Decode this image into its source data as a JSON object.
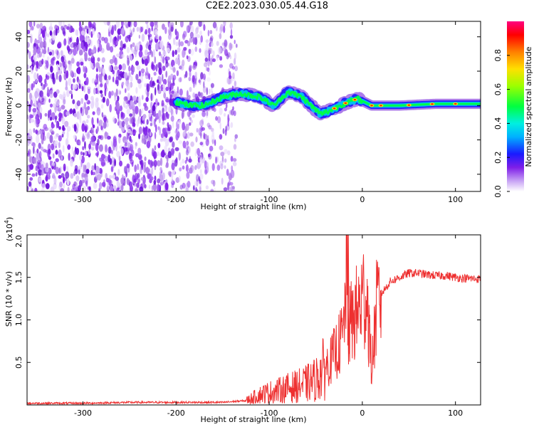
{
  "title": "C2E2.2023.030.05.44.G18",
  "colors": {
    "spectrogram_noise": "#7f1fe8",
    "snr_line": "#ee3030",
    "axis": "#000000"
  },
  "chart_data": [
    {
      "type": "heatmap",
      "name": "spectrogram",
      "xlabel": "Height of straight line (km)",
      "ylabel": "Frequency (Hz)",
      "xlim": [
        -360,
        127
      ],
      "ylim": [
        -50,
        49
      ],
      "xticks": [
        -300,
        -200,
        -100,
        0,
        100
      ],
      "yticks": [
        -40,
        -20,
        0,
        20,
        40
      ],
      "colorbar": {
        "label": "Normalized spectral amplitude",
        "range": [
          0,
          1
        ],
        "ticks": [
          "0.0",
          "0.2",
          "0.4",
          "0.6",
          "0.8"
        ],
        "tick_values": [
          0.0,
          0.2,
          0.4,
          0.6,
          0.8
        ],
        "colormap": "rainbow (white-violet-blue-cyan-green-yellow-red-magenta)"
      },
      "regions": [
        {
          "x_range": [
            -360,
            -200
          ],
          "content": "dense broadband noise, all frequencies"
        },
        {
          "x_range": [
            -200,
            -135
          ],
          "content": "broadband noise, lower density"
        },
        {
          "x_range": [
            -135,
            127
          ],
          "content": "narrowband signal near 0 Hz"
        }
      ],
      "signal_ridge": {
        "x": [
          -200,
          -185,
          -170,
          -150,
          -130,
          -110,
          -95,
          -80,
          -65,
          -55,
          -45,
          -35,
          -20,
          -5,
          10,
          40,
          80,
          127
        ],
        "y": [
          2,
          0,
          0,
          5,
          7,
          5,
          0,
          8,
          5,
          0,
          -5,
          -3,
          1,
          4,
          0,
          0,
          1,
          1
        ],
        "peak_amplitude": 0.85
      }
    },
    {
      "type": "line",
      "name": "snr",
      "xlabel": "Height of straight line (km)",
      "ylabel": "SNR (10 * v/v)",
      "y_multiplier_label": "(x10",
      "y_multiplier_exponent": "4",
      "y_multiplier_suffix": ")",
      "xlim": [
        -360,
        127
      ],
      "ylim": [
        0,
        2.0
      ],
      "xticks": [
        -300,
        -200,
        -100,
        0,
        100
      ],
      "yticks": [
        0.5,
        1.0,
        1.5,
        2.0
      ],
      "ytick_labels": [
        "0.5",
        "1.0",
        "1.5",
        "2.0"
      ],
      "series": [
        {
          "x": [
            -360,
            -300,
            -250,
            -200,
            -150,
            -125,
            -110,
            -100,
            -90,
            -80,
            -70,
            -60,
            -50,
            -40,
            -35,
            -30,
            -25,
            -20,
            -17,
            -15,
            -10,
            -5,
            0,
            5,
            10,
            15,
            20,
            30,
            40,
            50,
            60,
            70,
            80,
            90,
            100,
            110,
            127
          ],
          "y": [
            0.02,
            0.02,
            0.03,
            0.03,
            0.03,
            0.05,
            0.12,
            0.15,
            0.17,
            0.2,
            0.22,
            0.25,
            0.3,
            0.45,
            0.5,
            0.6,
            0.7,
            0.85,
            1.7,
            0.9,
            1.0,
            1.1,
            1.25,
            1.3,
            0.4,
            1.1,
            1.3,
            1.45,
            1.5,
            1.55,
            1.55,
            1.53,
            1.52,
            1.52,
            1.5,
            1.49,
            1.48
          ]
        }
      ]
    }
  ]
}
